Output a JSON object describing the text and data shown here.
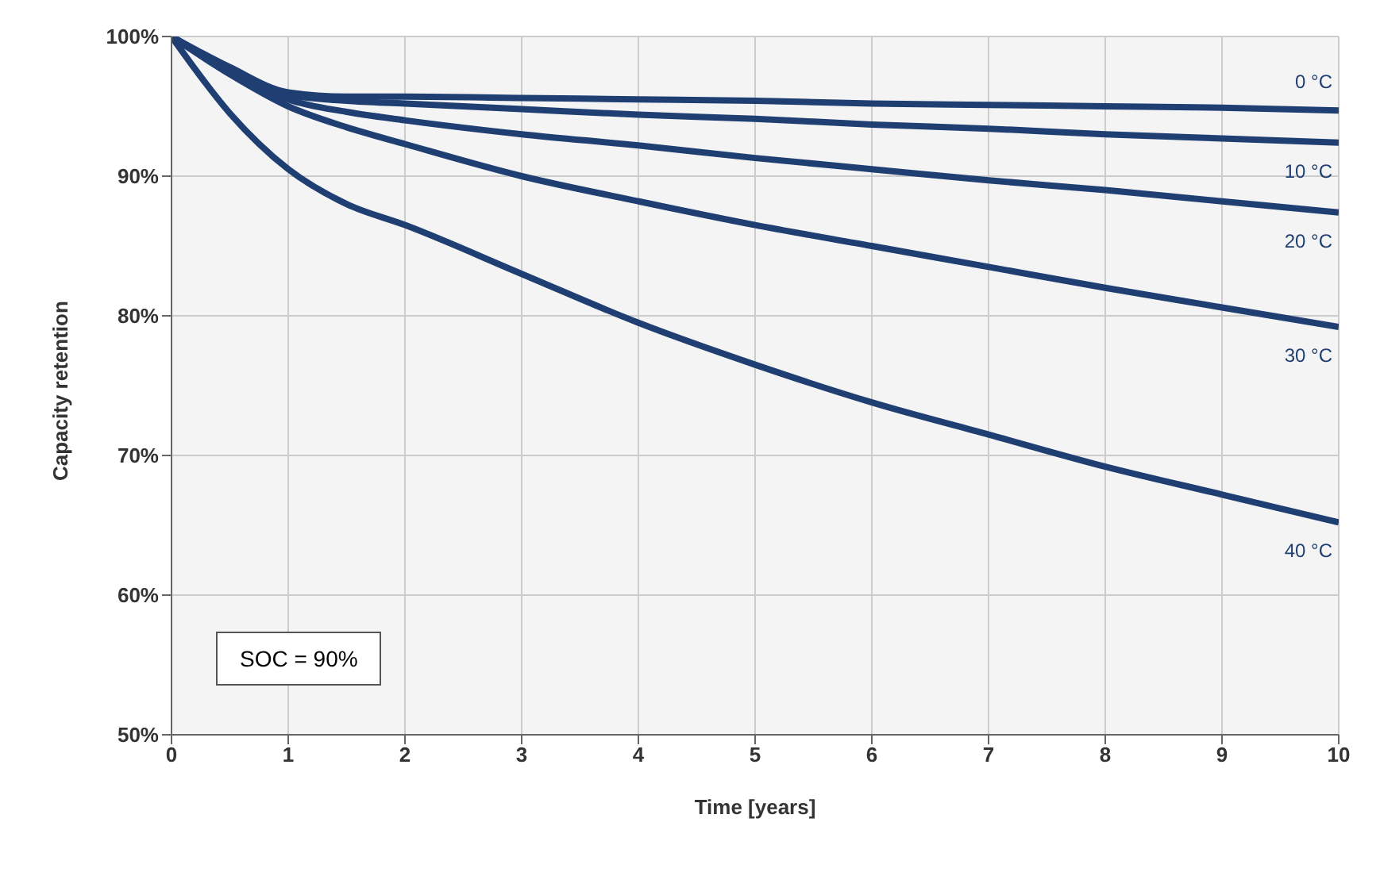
{
  "chart_data": {
    "type": "line",
    "xlabel": "Time [years]",
    "ylabel": "Capacity retention",
    "x": [
      0,
      0.5,
      1,
      1.5,
      2,
      3,
      4,
      5,
      6,
      7,
      8,
      9,
      10
    ],
    "series": [
      {
        "name": "0 °C",
        "color": "#1f3f73",
        "values": [
          100,
          97.8,
          96,
          95.7,
          95.7,
          95.6,
          95.5,
          95.4,
          95.2,
          95.1,
          95,
          94.9,
          94.7
        ]
      },
      {
        "name": "10 °C",
        "color": "#1f3f73",
        "values": [
          100,
          97.7,
          95.8,
          95.4,
          95.2,
          94.8,
          94.4,
          94.1,
          93.7,
          93.4,
          93,
          92.7,
          92.4
        ]
      },
      {
        "name": "20 °C",
        "color": "#1f3f73",
        "values": [
          100,
          97.5,
          95.5,
          94.6,
          94,
          93,
          92.2,
          91.3,
          90.5,
          89.7,
          89,
          88.2,
          87.4
        ]
      },
      {
        "name": "30 °C",
        "color": "#1f3f73",
        "values": [
          100,
          97.3,
          95,
          93.5,
          92.3,
          90,
          88.2,
          86.5,
          85,
          83.5,
          82,
          80.6,
          79.2
        ]
      },
      {
        "name": "40 °C",
        "color": "#1f3f73",
        "values": [
          100,
          94.5,
          90.5,
          88,
          86.5,
          83,
          79.5,
          76.5,
          73.8,
          71.5,
          69.2,
          67.2,
          65.2
        ]
      }
    ],
    "xlim": [
      0,
      10
    ],
    "xticks": [
      0,
      1,
      2,
      3,
      4,
      5,
      6,
      7,
      8,
      9,
      10
    ],
    "ylim": [
      50,
      100
    ],
    "yticks": [
      {
        "value": 50,
        "label": "50%"
      },
      {
        "value": 60,
        "label": "60%"
      },
      {
        "value": 70,
        "label": "70%"
      },
      {
        "value": 80,
        "label": "80%"
      },
      {
        "value": 90,
        "label": "90%"
      },
      {
        "value": 100,
        "label": "100%"
      }
    ],
    "annotations": [
      "SOC = 90%"
    ],
    "grid": true,
    "legend": false,
    "marker": "none",
    "line_style": "solid"
  }
}
